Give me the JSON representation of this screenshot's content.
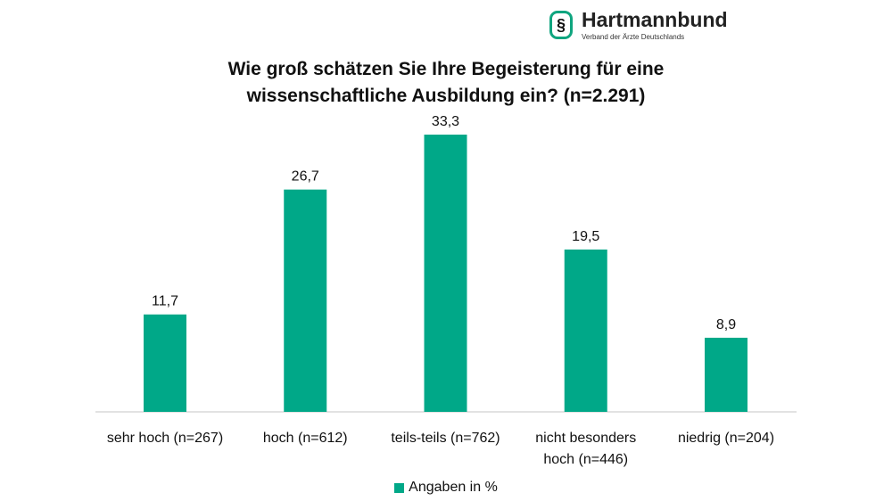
{
  "logo": {
    "name": "Hartmannbund",
    "subtitle": "Verband der Ärzte Deutschlands"
  },
  "colors": {
    "bar": "#00a888",
    "axis": "#d9d9d9"
  },
  "chart_data": {
    "type": "bar",
    "title_lines": [
      "Wie groß schätzen Sie Ihre Begeisterung für eine",
      "wissenschaftliche Ausbildung ein? (n=2.291)"
    ],
    "categories": [
      [
        "sehr hoch (n=267)"
      ],
      [
        "hoch (n=612)"
      ],
      [
        "teils-teils (n=762)"
      ],
      [
        "nicht besonders",
        "hoch (n=446)"
      ],
      [
        "niedrig (n=204)"
      ]
    ],
    "values": [
      11.7,
      26.7,
      33.3,
      19.5,
      8.9
    ],
    "value_labels": [
      "11,7",
      "26,7",
      "33,3",
      "19,5",
      "8,9"
    ],
    "series_name": "Angaben in %",
    "legend_position": "bottom",
    "ylim": [
      0,
      33.3
    ],
    "grid": false
  }
}
